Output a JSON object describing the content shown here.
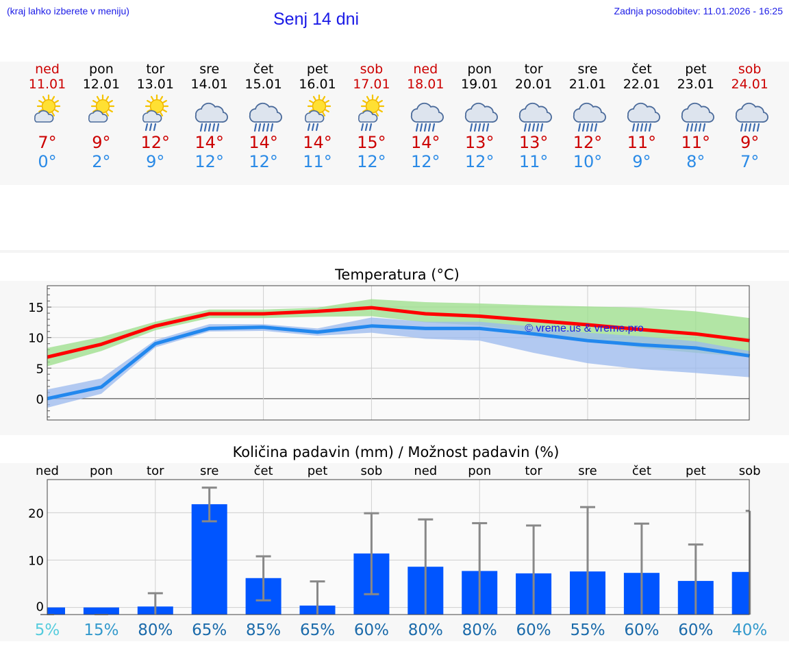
{
  "header": {
    "hint": "(kraj lahko izberete v meniju)",
    "title": "Senj 14 dni",
    "updated": "Zadnja posodobitev: 11.01.2026 - 16:25"
  },
  "days": [
    {
      "name": "ned",
      "date": "11.01",
      "weekend": true,
      "icon": "sun-cloud",
      "tmax": "7°",
      "tmin": "0°"
    },
    {
      "name": "pon",
      "date": "12.01",
      "weekend": false,
      "icon": "sun-cloud",
      "tmax": "9°",
      "tmin": "2°"
    },
    {
      "name": "tor",
      "date": "13.01",
      "weekend": false,
      "icon": "sun-cloud-rain",
      "tmax": "12°",
      "tmin": "9°"
    },
    {
      "name": "sre",
      "date": "14.01",
      "weekend": false,
      "icon": "cloud-rain",
      "tmax": "14°",
      "tmin": "12°"
    },
    {
      "name": "čet",
      "date": "15.01",
      "weekend": false,
      "icon": "cloud-rain",
      "tmax": "14°",
      "tmin": "12°"
    },
    {
      "name": "pet",
      "date": "16.01",
      "weekend": false,
      "icon": "sun-cloud-rain",
      "tmax": "14°",
      "tmin": "11°"
    },
    {
      "name": "sob",
      "date": "17.01",
      "weekend": true,
      "icon": "sun-cloud-rain",
      "tmax": "15°",
      "tmin": "12°"
    },
    {
      "name": "ned",
      "date": "18.01",
      "weekend": true,
      "icon": "cloud-rain",
      "tmax": "14°",
      "tmin": "12°"
    },
    {
      "name": "pon",
      "date": "19.01",
      "weekend": false,
      "icon": "cloud-rain",
      "tmax": "13°",
      "tmin": "12°"
    },
    {
      "name": "tor",
      "date": "20.01",
      "weekend": false,
      "icon": "cloud-rain",
      "tmax": "13°",
      "tmin": "11°"
    },
    {
      "name": "sre",
      "date": "21.01",
      "weekend": false,
      "icon": "cloud-rain",
      "tmax": "12°",
      "tmin": "10°"
    },
    {
      "name": "čet",
      "date": "22.01",
      "weekend": false,
      "icon": "cloud-rain",
      "tmax": "11°",
      "tmin": "9°"
    },
    {
      "name": "pet",
      "date": "23.01",
      "weekend": false,
      "icon": "cloud-rain",
      "tmax": "11°",
      "tmin": "8°"
    },
    {
      "name": "sob",
      "date": "24.01",
      "weekend": true,
      "icon": "cloud-rain",
      "tmax": "9°",
      "tmin": "7°"
    }
  ],
  "chart_data": [
    {
      "type": "line",
      "title": "Temperatura (°C)",
      "watermark": "© vreme.us & vreme.pro",
      "ylim": [
        -3.5,
        18.5
      ],
      "yticks": [
        0,
        5,
        10,
        15
      ],
      "grid": true,
      "x": [
        0,
        1,
        2,
        3,
        4,
        5,
        6,
        7,
        8,
        9,
        10,
        11,
        12,
        13
      ],
      "series": [
        {
          "name": "max",
          "color": "#ff0000",
          "values": [
            6.8,
            8.9,
            11.9,
            13.9,
            13.9,
            14.3,
            14.9,
            13.9,
            13.5,
            12.8,
            12.1,
            11.3,
            10.6,
            9.5
          ],
          "band_low": [
            5.3,
            7.8,
            11.2,
            13.2,
            13.2,
            13.4,
            13.5,
            12.5,
            12.0,
            10.8,
            9.5,
            8.3,
            7.5,
            6.8
          ],
          "band_high": [
            8.3,
            10.1,
            12.6,
            14.6,
            14.6,
            14.9,
            16.3,
            15.8,
            15.6,
            15.3,
            15.1,
            14.9,
            14.3,
            13.2
          ],
          "band_color": "#99dd88"
        },
        {
          "name": "min",
          "color": "#2288ee",
          "values": [
            0.0,
            1.9,
            9.0,
            11.5,
            11.7,
            10.9,
            11.9,
            11.5,
            11.5,
            10.6,
            9.5,
            8.8,
            8.3,
            7.0
          ],
          "band_low": [
            -1.5,
            0.8,
            8.4,
            11.0,
            11.1,
            10.3,
            10.8,
            9.8,
            9.5,
            7.5,
            5.8,
            4.8,
            4.2,
            3.5
          ],
          "band_high": [
            1.5,
            3.3,
            9.6,
            12.2,
            12.2,
            11.5,
            13.3,
            12.6,
            12.6,
            11.8,
            10.8,
            10.2,
            9.4,
            7.8
          ],
          "band_color": "#99b8ee"
        }
      ]
    },
    {
      "type": "bar",
      "title": "Količina padavin (mm) / Možnost padavin (%)",
      "categories": [
        "ned",
        "pon",
        "tor",
        "sre",
        "čet",
        "pet",
        "sob",
        "ned",
        "pon",
        "tor",
        "sre",
        "čet",
        "pet",
        "sob"
      ],
      "ylim": [
        -1.5,
        27
      ],
      "yticks": [
        0,
        10,
        20
      ],
      "grid": true,
      "bar_color": "#0055ff",
      "error_color": "#888888",
      "values": [
        0.0,
        0.0,
        0.2,
        21.8,
        6.2,
        0.4,
        11.4,
        8.6,
        7.7,
        7.2,
        7.6,
        7.3,
        5.6,
        7.5
      ],
      "err_low": [
        0.0,
        0.0,
        0.0,
        18.2,
        1.5,
        0.0,
        2.8,
        0.0,
        0.0,
        0.0,
        0.0,
        0.0,
        0.0,
        0.0
      ],
      "err_high": [
        0.0,
        0.0,
        3.0,
        25.3,
        10.8,
        5.5,
        19.9,
        18.6,
        17.8,
        17.3,
        21.2,
        17.7,
        13.3,
        20.4
      ],
      "chance": [
        "5%",
        "15%",
        "80%",
        "65%",
        "85%",
        "65%",
        "60%",
        "80%",
        "80%",
        "60%",
        "55%",
        "60%",
        "60%",
        "40%"
      ],
      "chance_values": [
        5,
        15,
        80,
        65,
        85,
        65,
        60,
        80,
        80,
        60,
        55,
        60,
        60,
        40
      ]
    }
  ]
}
